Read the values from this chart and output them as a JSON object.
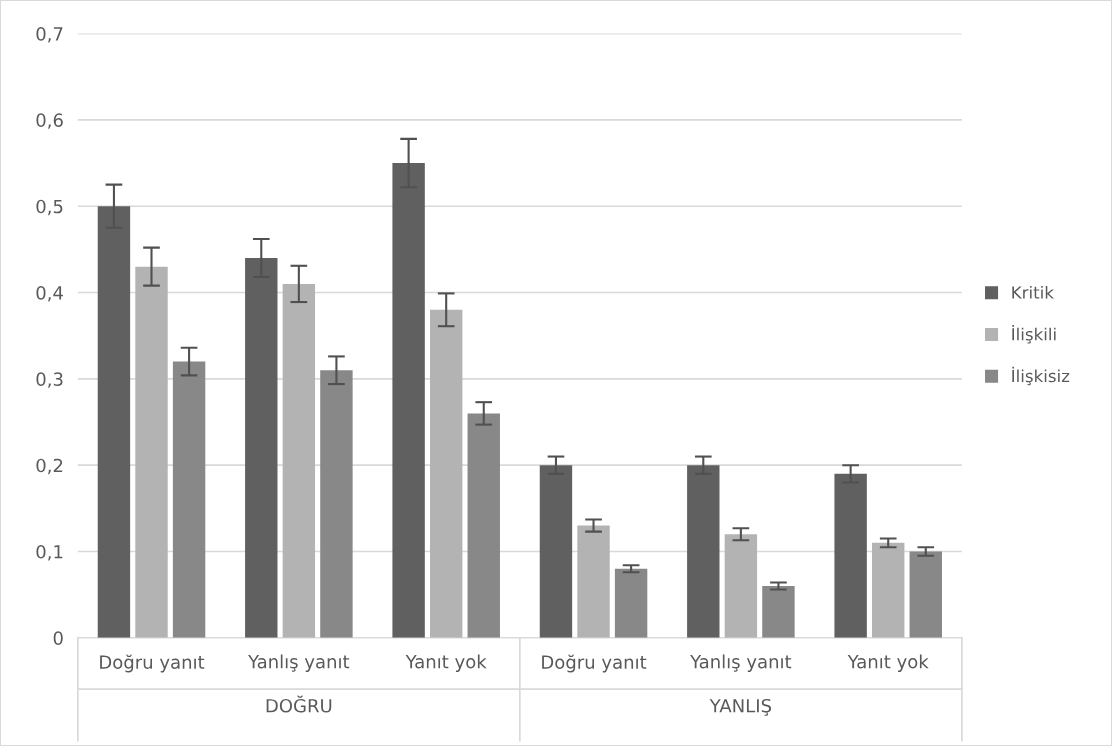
{
  "chart_data": {
    "type": "bar",
    "categories": [
      "Doğru yanıt",
      "Yanlış yanıt",
      "Yanıt yok",
      "Doğru yanıt",
      "Yanlış yanıt",
      "Yanıt yok"
    ],
    "series": [
      {
        "name": "Kritik",
        "color": "#606060",
        "values": [
          0.5,
          0.44,
          0.55,
          0.2,
          0.2,
          0.19
        ],
        "errors": [
          0.025,
          0.022,
          0.028,
          0.01,
          0.01,
          0.01
        ]
      },
      {
        "name": "İlişkili",
        "color": "#b3b3b3",
        "values": [
          0.43,
          0.41,
          0.38,
          0.13,
          0.12,
          0.11
        ],
        "errors": [
          0.022,
          0.021,
          0.019,
          0.007,
          0.007,
          0.005
        ]
      },
      {
        "name": "İlişkisiz",
        "color": "#888888",
        "values": [
          0.32,
          0.31,
          0.26,
          0.08,
          0.06,
          0.1
        ],
        "errors": [
          0.016,
          0.016,
          0.013,
          0.004,
          0.004,
          0.005
        ]
      }
    ],
    "annotations": [
      "DOĞRU",
      "YANLIŞ"
    ],
    "ylim": [
      0,
      0.7
    ],
    "yticks": [
      {
        "value": 0,
        "label": "0"
      },
      {
        "value": 0.1,
        "label": "0,1"
      },
      {
        "value": 0.2,
        "label": "0,2"
      },
      {
        "value": 0.3,
        "label": "0,3"
      },
      {
        "value": 0.4,
        "label": "0,4"
      },
      {
        "value": 0.5,
        "label": "0,5"
      },
      {
        "value": 0.6,
        "label": "0,6"
      },
      {
        "value": 0.7,
        "label": "0,7"
      }
    ],
    "grid": "y",
    "legend": "right"
  }
}
